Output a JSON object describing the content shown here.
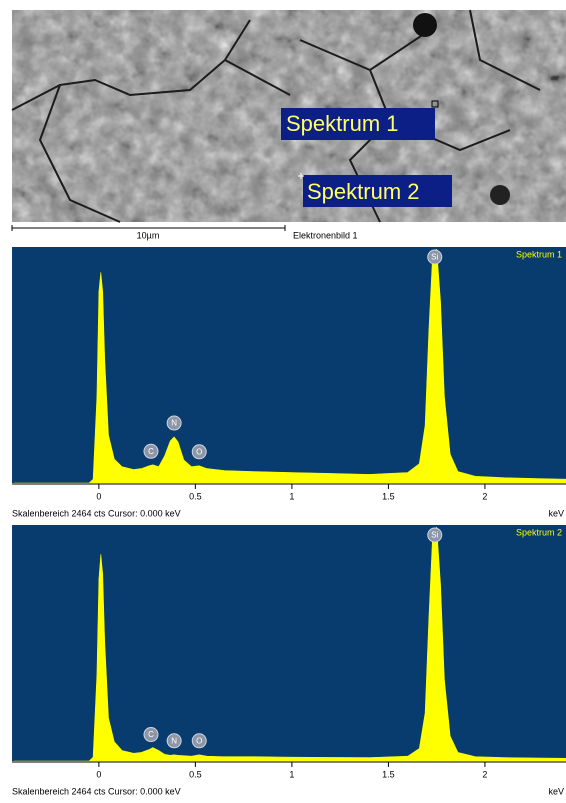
{
  "image": {
    "labels": [
      "Spektrum 1",
      "Spektrum 2"
    ],
    "scale_bar": "10µm",
    "caption": "Elektronenbild 1"
  },
  "chart_data": [
    {
      "type": "area",
      "title": "Spektrum 1",
      "color": "#ffff00",
      "background": "#083c6f",
      "x": [
        -0.44,
        -0.05,
        -0.03,
        -0.01,
        0,
        0.01,
        0.02,
        0.03,
        0.05,
        0.08,
        0.12,
        0.18,
        0.22,
        0.26,
        0.28,
        0.31,
        0.34,
        0.37,
        0.39,
        0.41,
        0.44,
        0.48,
        0.52,
        0.56,
        0.65,
        0.8,
        1.0,
        1.2,
        1.4,
        1.6,
        1.66,
        1.69,
        1.71,
        1.73,
        1.75,
        1.77,
        1.79,
        1.82,
        1.86,
        1.95,
        2.1,
        2.3,
        2.42
      ],
      "values": [
        0,
        0,
        40,
        900,
        2000,
        2200,
        2000,
        1300,
        500,
        250,
        170,
        140,
        150,
        180,
        190,
        170,
        280,
        440,
        480,
        430,
        240,
        170,
        180,
        150,
        130,
        120,
        110,
        100,
        90,
        110,
        200,
        600,
        1600,
        2420,
        2440,
        1900,
        900,
        300,
        120,
        70,
        55,
        45,
        40
      ],
      "xlim": [
        -0.45,
        2.42
      ],
      "xticks": [
        0,
        0.5,
        1,
        1.5,
        2
      ],
      "ylim": [
        0,
        2464
      ],
      "xlabel": "keV",
      "peaks": [
        {
          "label": "Si",
          "x": 1.74
        },
        {
          "label": "C",
          "x": 0.27
        },
        {
          "label": "N",
          "x": 0.39
        },
        {
          "label": "O",
          "x": 0.52
        }
      ],
      "footer": "Skalenbereich 2464 cts  Cursor: 0.000 keV"
    },
    {
      "type": "area",
      "title": "Spektrum 2",
      "color": "#ffff00",
      "background": "#083c6f",
      "x": [
        -0.44,
        -0.05,
        -0.03,
        -0.01,
        0,
        0.01,
        0.02,
        0.03,
        0.05,
        0.08,
        0.12,
        0.18,
        0.22,
        0.26,
        0.28,
        0.31,
        0.34,
        0.37,
        0.39,
        0.41,
        0.44,
        0.48,
        0.52,
        0.56,
        0.65,
        0.8,
        1.0,
        1.2,
        1.4,
        1.6,
        1.66,
        1.69,
        1.71,
        1.73,
        1.75,
        1.77,
        1.79,
        1.82,
        1.86,
        1.95,
        2.1,
        2.3,
        2.42
      ],
      "values": [
        0,
        0,
        40,
        900,
        1900,
        2160,
        1950,
        1250,
        450,
        200,
        110,
        80,
        90,
        120,
        140,
        110,
        70,
        60,
        65,
        60,
        55,
        50,
        65,
        50,
        45,
        45,
        40,
        38,
        35,
        50,
        130,
        500,
        1500,
        2400,
        2440,
        1850,
        850,
        260,
        90,
        45,
        35,
        30,
        28
      ],
      "xlim": [
        -0.45,
        2.42
      ],
      "xticks": [
        0,
        0.5,
        1,
        1.5,
        2
      ],
      "ylim": [
        0,
        2464
      ],
      "xlabel": "keV",
      "peaks": [
        {
          "label": "Si",
          "x": 1.74
        },
        {
          "label": "C",
          "x": 0.27
        },
        {
          "label": "N",
          "x": 0.39
        },
        {
          "label": "O",
          "x": 0.52
        }
      ],
      "footer": "Skalenbereich 2464 cts  Cursor: 0.000 keV"
    }
  ]
}
